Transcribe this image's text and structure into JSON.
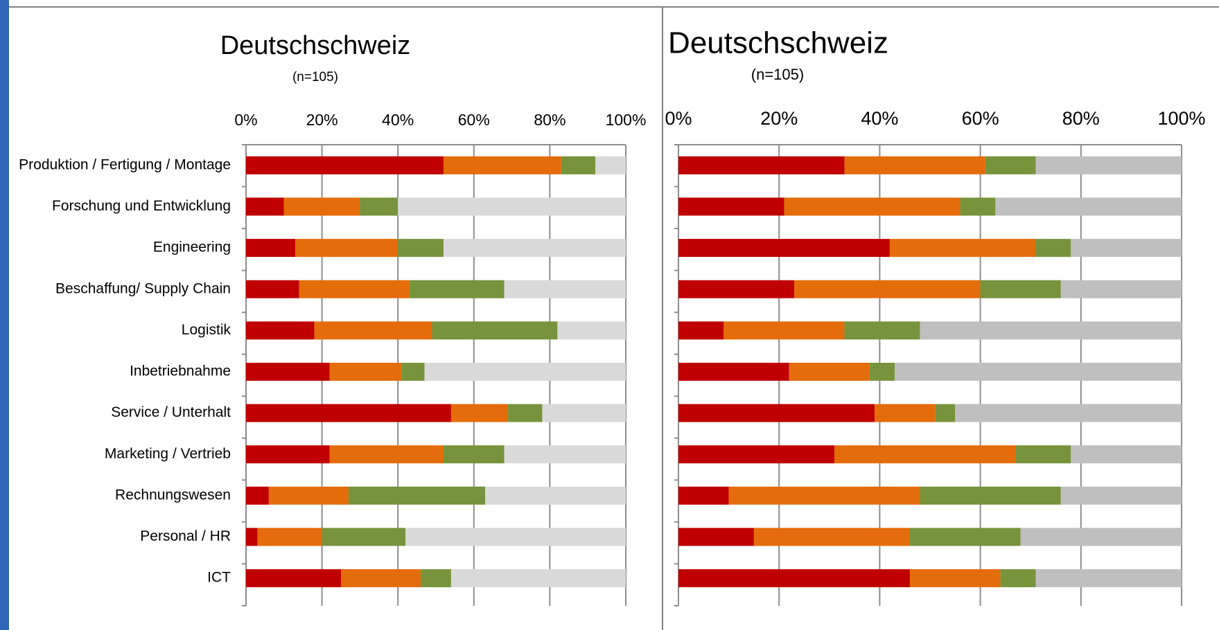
{
  "chart_data": [
    {
      "type": "stacked-barh",
      "title": "Deutschschweiz",
      "subtitle": "(n=105)",
      "categories": [
        "Produktion / Fertigung / Montage",
        "Forschung und Entwicklung",
        "Engineering",
        "Beschaffung/ Supply Chain",
        "Logistik",
        "Inbetriebnahme",
        "Service / Unterhalt",
        "Marketing / Vertrieb",
        "Rechnungswesen",
        "Personal / HR",
        "ICT"
      ],
      "series": [
        {
          "color": "#c00000",
          "values": [
            52,
            10,
            13,
            14,
            18,
            22,
            54,
            22,
            6,
            3,
            25
          ]
        },
        {
          "color": "#e46c0a",
          "values": [
            31,
            20,
            27,
            29,
            31,
            19,
            15,
            30,
            21,
            17,
            21
          ]
        },
        {
          "color": "#77933c",
          "values": [
            9,
            10,
            12,
            25,
            33,
            6,
            9,
            16,
            36,
            22,
            8
          ]
        },
        {
          "color": "#d9d9d9",
          "values": [
            8,
            60,
            48,
            32,
            18,
            53,
            22,
            32,
            37,
            58,
            46
          ]
        }
      ],
      "xlim": [
        0,
        100
      ],
      "xticks": [
        {
          "value": 0,
          "label": "0%"
        },
        {
          "value": 20,
          "label": "20%"
        },
        {
          "value": 40,
          "label": "40%"
        },
        {
          "value": 60,
          "label": "60%"
        },
        {
          "value": 80,
          "label": "80%"
        },
        {
          "value": 100,
          "label": "100%"
        }
      ],
      "grid": true
    },
    {
      "type": "stacked-barh",
      "title": "Deutschschweiz",
      "subtitle": "(n=105)",
      "categories": [
        null,
        null,
        null,
        null,
        null,
        null,
        null,
        null,
        null,
        null,
        null
      ],
      "series": [
        {
          "color": "#c00000",
          "values": [
            33,
            21,
            42,
            23,
            9,
            22,
            39,
            31,
            10,
            15,
            46
          ]
        },
        {
          "color": "#e46c0a",
          "values": [
            28,
            35,
            29,
            37,
            24,
            16,
            12,
            36,
            38,
            31,
            18
          ]
        },
        {
          "color": "#77933c",
          "values": [
            10,
            7,
            7,
            16,
            15,
            5,
            4,
            11,
            28,
            22,
            7
          ]
        },
        {
          "color": "#bfbfbf",
          "values": [
            29,
            37,
            22,
            24,
            52,
            57,
            45,
            22,
            24,
            32,
            29
          ]
        }
      ],
      "xlim": [
        0,
        100
      ],
      "xticks": [
        {
          "value": 0,
          "label": "0%"
        },
        {
          "value": 20,
          "label": "20%"
        },
        {
          "value": 40,
          "label": "40%"
        },
        {
          "value": 60,
          "label": "60%"
        },
        {
          "value": 80,
          "label": "80%"
        },
        {
          "value": 100,
          "label": "100%"
        }
      ],
      "grid": true
    }
  ]
}
